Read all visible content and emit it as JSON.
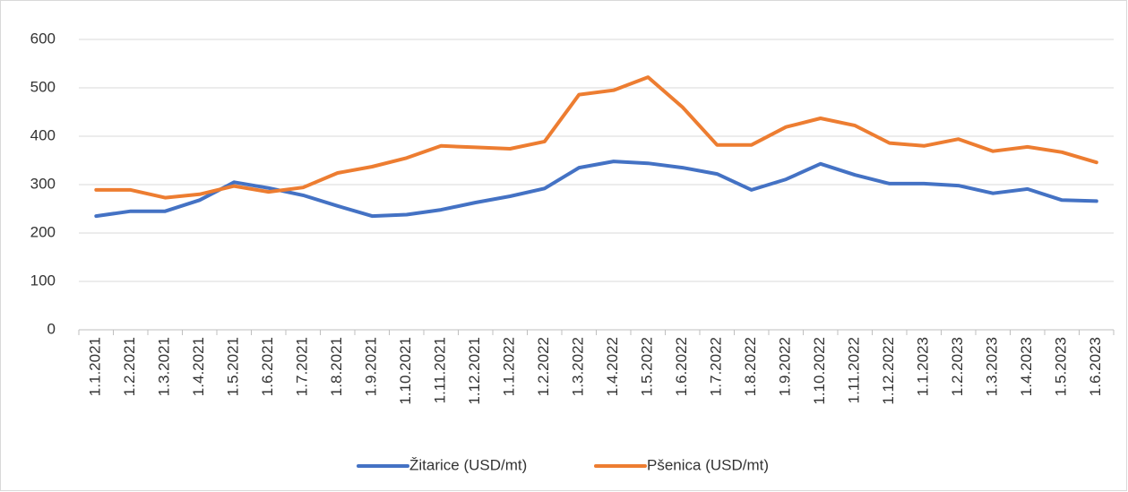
{
  "chart_data": {
    "type": "line",
    "categories": [
      "1.1.2021",
      "1.2.2021",
      "1.3.2021",
      "1.4.2021",
      "1.5.2021",
      "1.6.2021",
      "1.7.2021",
      "1.8.2021",
      "1.9.2021",
      "1.10.2021",
      "1.11.2021",
      "1.12.2021",
      "1.1.2022",
      "1.2.2022",
      "1.3.2022",
      "1.4.2022",
      "1.5.2022",
      "1.6.2022",
      "1.7.2022",
      "1.8.2022",
      "1.9.2022",
      "1.10.2022",
      "1.11.2022",
      "1.12.2022",
      "1.1.2023",
      "1.2.2023",
      "1.3.2023",
      "1.4.2023",
      "1.5.2023",
      "1.6.2023"
    ],
    "series": [
      {
        "name": "Žitarice (USD/mt)",
        "color": "#4472c4",
        "values": [
          235,
          245,
          245,
          268,
          305,
          293,
          278,
          256,
          235,
          238,
          248,
          263,
          276,
          292,
          335,
          348,
          344,
          335,
          322,
          289,
          311,
          343,
          320,
          302,
          302,
          298,
          282,
          291,
          268,
          266
        ]
      },
      {
        "name": "Pšenica (USD/mt)",
        "color": "#ed7d31",
        "values": [
          289,
          289,
          273,
          280,
          297,
          285,
          294,
          324,
          337,
          355,
          380,
          377,
          374,
          389,
          486,
          495,
          522,
          460,
          382,
          382,
          419,
          437,
          422,
          386,
          380,
          394,
          369,
          378,
          367,
          346
        ]
      }
    ],
    "ylim": [
      0,
      600
    ],
    "yticks": [
      0,
      100,
      200,
      300,
      400,
      500,
      600
    ],
    "grid": true,
    "legend": "bottom"
  }
}
